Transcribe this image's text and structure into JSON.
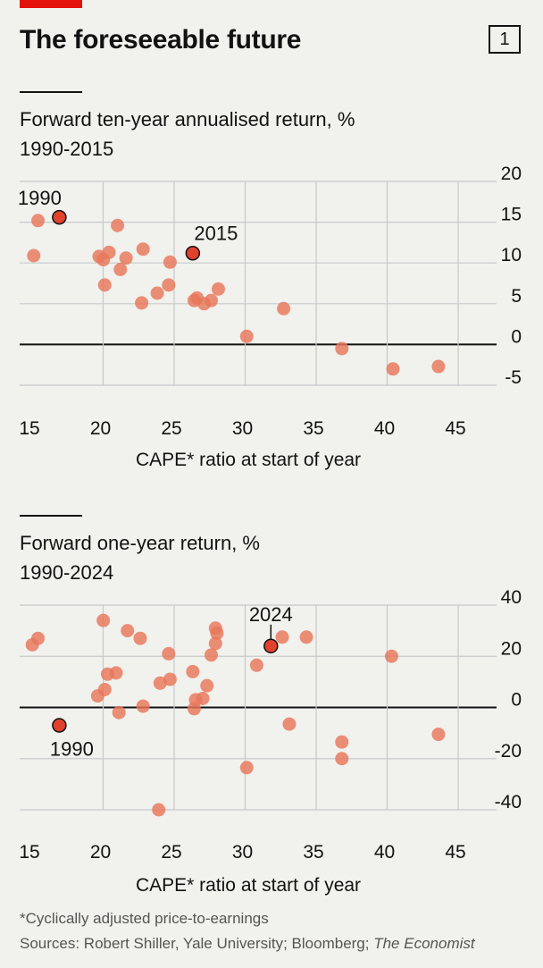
{
  "header": {
    "title": "The foreseeable future",
    "chart_number": "1"
  },
  "colors": {
    "point": "#e8765a",
    "highlight": "#e0422d",
    "grid": "#c7c9cc",
    "zero_line": "#121212",
    "brand_red": "#e3120b"
  },
  "charts": [
    {
      "title": "Forward ten-year annualised return, %",
      "subtitle": "1990-2015"
    },
    {
      "title": "Forward one-year return, %",
      "subtitle": "1990-2024"
    }
  ],
  "chart_data": [
    {
      "type": "scatter",
      "title": "Forward ten-year annualised return, %",
      "subtitle": "1990-2015",
      "xlabel": "CAPE* ratio at start of year",
      "ylabel": "",
      "xlim": [
        15,
        47
      ],
      "ylim": [
        -5,
        20
      ],
      "xticks": [
        15,
        20,
        25,
        30,
        35,
        40,
        45
      ],
      "yticks": [
        20,
        15,
        10,
        5,
        0,
        -5
      ],
      "grid": true,
      "points": [
        {
          "x": 15.3,
          "y": 10.9
        },
        {
          "x": 15.6,
          "y": 15.2
        },
        {
          "x": 19.9,
          "y": 10.8
        },
        {
          "x": 20.2,
          "y": 10.4
        },
        {
          "x": 20.3,
          "y": 7.3
        },
        {
          "x": 20.6,
          "y": 11.3
        },
        {
          "x": 21.2,
          "y": 14.6
        },
        {
          "x": 21.4,
          "y": 9.2
        },
        {
          "x": 21.8,
          "y": 10.6
        },
        {
          "x": 22.9,
          "y": 5.1
        },
        {
          "x": 23.0,
          "y": 11.7
        },
        {
          "x": 24.0,
          "y": 6.3
        },
        {
          "x": 24.8,
          "y": 7.3
        },
        {
          "x": 24.9,
          "y": 10.1
        },
        {
          "x": 26.6,
          "y": 5.4
        },
        {
          "x": 26.8,
          "y": 5.7
        },
        {
          "x": 27.3,
          "y": 5.0
        },
        {
          "x": 27.8,
          "y": 5.4
        },
        {
          "x": 28.3,
          "y": 6.8
        },
        {
          "x": 30.3,
          "y": 1.0
        },
        {
          "x": 32.9,
          "y": 4.4
        },
        {
          "x": 37.0,
          "y": -0.5
        },
        {
          "x": 40.6,
          "y": -3.0
        },
        {
          "x": 43.8,
          "y": -2.7
        }
      ],
      "highlights": [
        {
          "x": 17.1,
          "y": 15.6,
          "label": "1990"
        },
        {
          "x": 26.5,
          "y": 11.2,
          "label": "2015"
        }
      ]
    },
    {
      "type": "scatter",
      "title": "Forward one-year return, %",
      "subtitle": "1990-2024",
      "xlabel": "CAPE* ratio at start of year",
      "ylabel": "",
      "xlim": [
        15,
        47
      ],
      "ylim": [
        -40,
        40
      ],
      "xticks": [
        15,
        20,
        25,
        30,
        35,
        40,
        45
      ],
      "yticks": [
        40,
        20,
        0,
        -20,
        -40
      ],
      "grid": true,
      "points": [
        {
          "x": 15.2,
          "y": 24.5
        },
        {
          "x": 15.6,
          "y": 27.0
        },
        {
          "x": 19.8,
          "y": 4.5
        },
        {
          "x": 20.2,
          "y": 34.0
        },
        {
          "x": 20.3,
          "y": 7.0
        },
        {
          "x": 20.5,
          "y": 13.0
        },
        {
          "x": 21.1,
          "y": 13.5
        },
        {
          "x": 21.3,
          "y": -2.0
        },
        {
          "x": 21.9,
          "y": 30.0
        },
        {
          "x": 22.8,
          "y": 27.0
        },
        {
          "x": 23.0,
          "y": 0.5
        },
        {
          "x": 24.1,
          "y": -40.0
        },
        {
          "x": 24.2,
          "y": 9.5
        },
        {
          "x": 24.8,
          "y": 21.0
        },
        {
          "x": 24.9,
          "y": 11.0
        },
        {
          "x": 26.5,
          "y": 14.0
        },
        {
          "x": 26.6,
          "y": -0.5
        },
        {
          "x": 26.7,
          "y": 3.0
        },
        {
          "x": 27.2,
          "y": 3.5
        },
        {
          "x": 27.5,
          "y": 8.5
        },
        {
          "x": 27.8,
          "y": 20.5
        },
        {
          "x": 28.1,
          "y": 31.0
        },
        {
          "x": 28.1,
          "y": 25.0
        },
        {
          "x": 28.2,
          "y": 29.0
        },
        {
          "x": 30.3,
          "y": -23.5
        },
        {
          "x": 31.0,
          "y": 16.5
        },
        {
          "x": 32.8,
          "y": 27.5
        },
        {
          "x": 33.3,
          "y": -6.5
        },
        {
          "x": 34.5,
          "y": 27.5
        },
        {
          "x": 37.0,
          "y": -13.5
        },
        {
          "x": 37.0,
          "y": -20.0
        },
        {
          "x": 40.5,
          "y": 20.0
        },
        {
          "x": 43.8,
          "y": -10.5
        }
      ],
      "highlights": [
        {
          "x": 17.1,
          "y": -7.0,
          "label": "1990"
        },
        {
          "x": 32.0,
          "y": 24.0,
          "label": "2024"
        }
      ]
    }
  ],
  "footnotes": {
    "definition": "*Cyclically adjusted price-to-earnings",
    "sources_prefix": "Sources: Robert Shiller, Yale University; Bloomberg; ",
    "sources_publication": "The Economist"
  }
}
